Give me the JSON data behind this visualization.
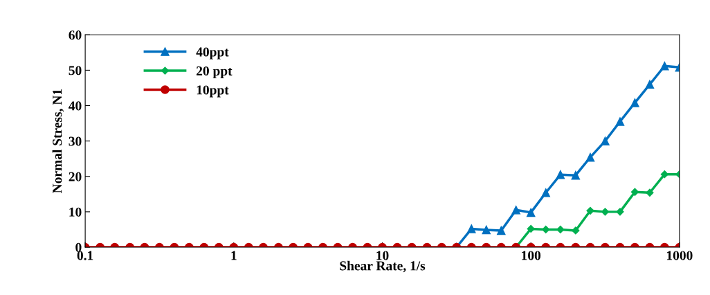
{
  "chart_data": {
    "type": "line",
    "xlabel": "Shear Rate, 1/s",
    "ylabel": "Normal Stress, N1",
    "log": "x",
    "x": [
      0.1,
      0.126,
      0.158,
      0.2,
      0.251,
      0.316,
      0.398,
      0.501,
      0.631,
      0.794,
      1,
      1.26,
      1.58,
      2,
      2.51,
      3.16,
      3.98,
      5.01,
      6.31,
      7.94,
      10,
      12.6,
      15.8,
      20,
      25.1,
      31.6,
      39.8,
      50.1,
      63.1,
      79.4,
      100,
      126,
      158,
      200,
      251,
      316,
      398,
      501,
      631,
      794,
      1000
    ],
    "xlim": [
      0.1,
      1000
    ],
    "xticks": [
      {
        "value": 0.1,
        "label": "0.1"
      },
      1,
      10,
      100,
      1000
    ],
    "ylim": [
      0,
      60
    ],
    "yticks": [
      0,
      10,
      20,
      30,
      40,
      50,
      60
    ],
    "grid": false,
    "legend": "top left",
    "line_style": "solid",
    "series": [
      {
        "name": "40ppt",
        "color": "#0070c0",
        "marker": "triangle",
        "values": [
          null,
          null,
          null,
          null,
          null,
          null,
          null,
          null,
          null,
          null,
          null,
          null,
          null,
          null,
          null,
          null,
          null,
          null,
          null,
          null,
          null,
          null,
          null,
          null,
          null,
          0,
          5.2,
          4.9,
          4.7,
          10.5,
          9.8,
          15.4,
          20.5,
          20.3,
          25.4,
          30,
          35.5,
          40.8,
          46,
          51.2,
          50.8
        ]
      },
      {
        "name": "20 ppt",
        "color": "#00b050",
        "marker": "diamond",
        "values": [
          null,
          null,
          null,
          null,
          null,
          null,
          null,
          null,
          null,
          null,
          null,
          null,
          null,
          null,
          null,
          null,
          null,
          null,
          null,
          null,
          null,
          null,
          null,
          null,
          null,
          null,
          null,
          null,
          null,
          0,
          5.2,
          5,
          5,
          4.7,
          10.3,
          10,
          10,
          15.6,
          15.4,
          20.6,
          20.6
        ]
      },
      {
        "name": "10ppt",
        "color": "#c00000",
        "marker": "circle",
        "values": [
          0,
          0,
          0,
          0,
          0,
          0,
          0,
          0,
          0,
          0,
          0,
          0,
          0,
          0,
          0,
          0,
          0,
          0,
          0,
          0,
          0,
          0,
          0,
          0,
          0,
          0,
          0,
          0,
          0,
          0,
          0,
          0,
          0,
          0,
          0,
          0,
          0,
          0,
          0,
          0,
          0
        ]
      }
    ]
  }
}
